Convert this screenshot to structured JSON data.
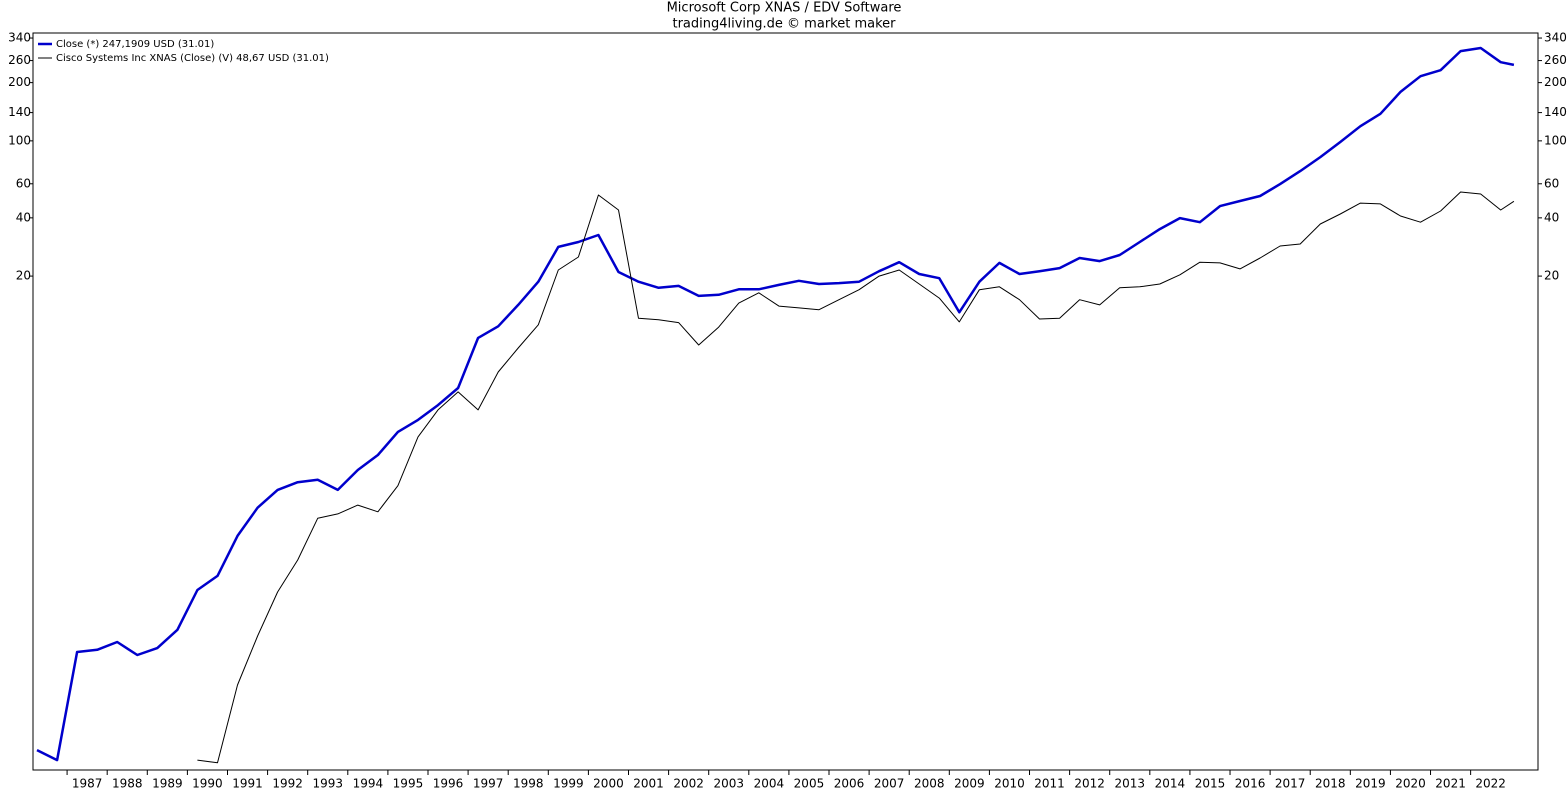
{
  "chart_data": {
    "type": "line",
    "title": "Microsoft Corp XNAS / EDV Software",
    "subtitle": "trading4living.de © market maker",
    "log_scale": true,
    "legend": "upper left",
    "xlim": [
      1986.15,
      2023.68
    ],
    "ylim": [
      0.056,
      361
    ],
    "xticks": [
      1987,
      1988,
      1989,
      1990,
      1991,
      1992,
      1993,
      1994,
      1995,
      1996,
      1997,
      1998,
      1999,
      2000,
      2001,
      2002,
      2003,
      2004,
      2005,
      2006,
      2007,
      2008,
      2009,
      2010,
      2011,
      2012,
      2013,
      2014,
      2015,
      2016,
      2017,
      2018,
      2019,
      2020,
      2021,
      2022
    ],
    "yticks": [
      20,
      40,
      60,
      100,
      140,
      200,
      260,
      340
    ],
    "x": [
      1986.25,
      1986.75,
      1987.25,
      1987.75,
      1988.25,
      1988.75,
      1989.25,
      1989.75,
      1990.25,
      1990.75,
      1991.25,
      1991.75,
      1992.25,
      1992.75,
      1993.25,
      1993.75,
      1994.25,
      1994.75,
      1995.25,
      1995.75,
      1996.25,
      1996.75,
      1997.25,
      1997.75,
      1998.25,
      1998.75,
      1999.25,
      1999.75,
      2000.25,
      2000.75,
      2001.25,
      2001.75,
      2002.25,
      2002.75,
      2003.25,
      2003.75,
      2004.25,
      2004.75,
      2005.25,
      2005.75,
      2006.25,
      2006.75,
      2007.25,
      2007.75,
      2008.25,
      2008.75,
      2009.25,
      2009.75,
      2010.25,
      2010.75,
      2011.25,
      2011.75,
      2012.25,
      2012.75,
      2013.25,
      2013.75,
      2014.25,
      2014.75,
      2015.25,
      2015.75,
      2016.25,
      2016.75,
      2017.25,
      2017.75,
      2018.25,
      2018.75,
      2019.25,
      2019.75,
      2020.25,
      2020.75,
      2021.25,
      2021.75,
      2022.25,
      2022.75,
      2023.08
    ],
    "series": [
      {
        "name": "Close (*) 247,1909 USD (31.01)",
        "color": "#0000cc",
        "width": 2.5,
        "values": [
          0.071,
          0.063,
          0.228,
          0.234,
          0.257,
          0.22,
          0.239,
          0.297,
          0.477,
          0.564,
          0.908,
          1.27,
          1.57,
          1.72,
          1.77,
          1.57,
          1.99,
          2.38,
          3.13,
          3.61,
          4.31,
          5.28,
          9.58,
          11.0,
          14.2,
          18.7,
          28.3,
          30.0,
          32.6,
          21.0,
          18.7,
          17.4,
          17.8,
          15.8,
          16.0,
          17.1,
          17.1,
          18.0,
          18.9,
          18.2,
          18.4,
          18.7,
          21.2,
          23.6,
          20.5,
          19.5,
          13.0,
          18.7,
          23.4,
          20.5,
          21.2,
          22.0,
          24.8,
          23.9,
          25.7,
          30.0,
          35.0,
          39.9,
          38.0,
          46.0,
          48.9,
          51.9,
          59.8,
          69.8,
          82.4,
          98.6,
          119,
          138,
          179,
          216,
          232,
          291,
          302,
          255,
          247
        ]
      },
      {
        "name": "Cisco Systems Inc XNAS (Close) (V) 48,67 USD (31.01)",
        "color": "#000000",
        "width": 1,
        "values": [
          null,
          null,
          null,
          null,
          null,
          null,
          null,
          null,
          0.063,
          0.061,
          0.154,
          0.276,
          0.466,
          0.682,
          1.12,
          1.18,
          1.31,
          1.21,
          1.65,
          2.95,
          4.07,
          5.04,
          4.07,
          6.39,
          8.5,
          11.2,
          21.5,
          25.1,
          52.5,
          43.9,
          12.1,
          11.9,
          11.5,
          8.81,
          10.9,
          14.5,
          16.4,
          14.0,
          13.7,
          13.4,
          15.1,
          17.0,
          20.0,
          21.5,
          18.2,
          15.4,
          11.6,
          17.0,
          17.6,
          15.1,
          12.0,
          12.1,
          15.1,
          14.2,
          17.4,
          17.6,
          18.2,
          20.3,
          23.6,
          23.4,
          21.8,
          24.8,
          28.6,
          29.3,
          37.2,
          41.9,
          47.7,
          47.2,
          40.9,
          38.0,
          43.4,
          54.4,
          53.1,
          43.9,
          48.7
        ]
      }
    ]
  }
}
